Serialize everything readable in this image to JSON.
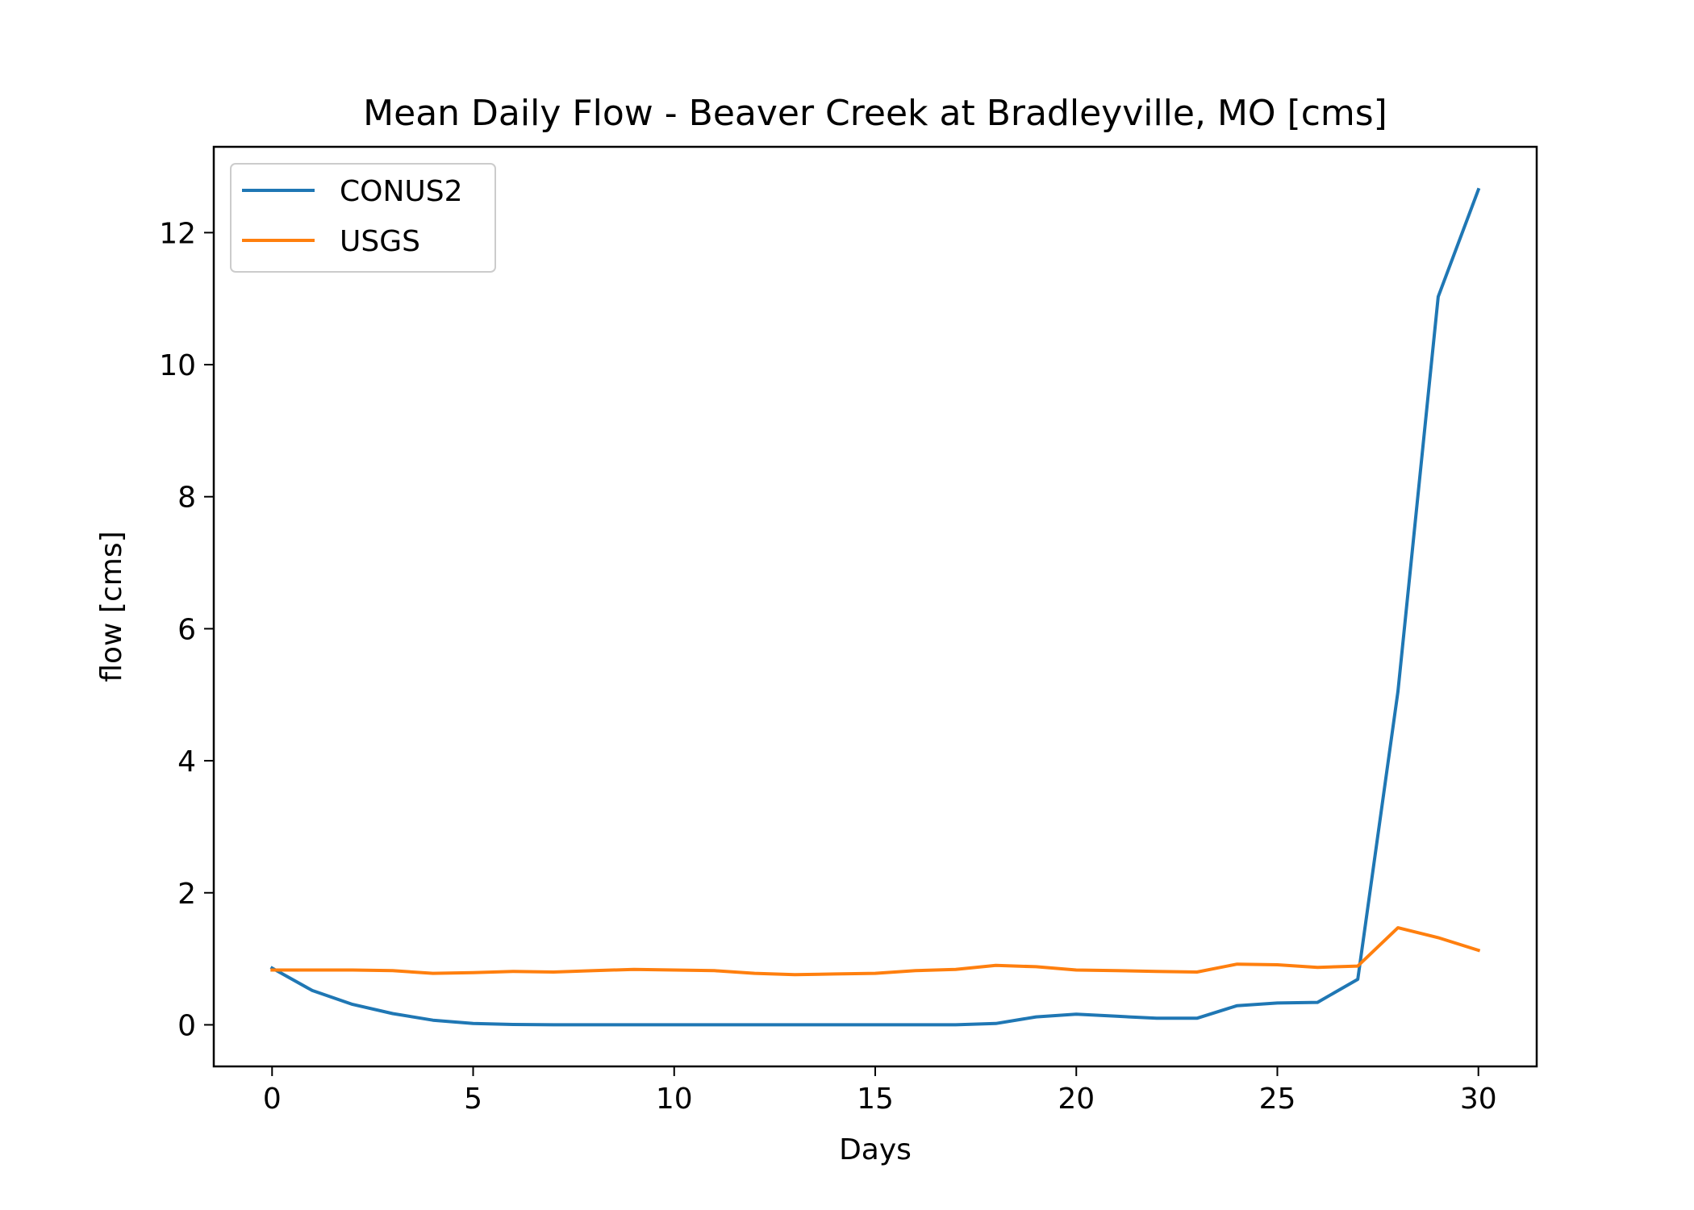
{
  "chart_data": {
    "type": "line",
    "title": "Mean Daily Flow - Beaver Creek at Bradleyville, MO [cms]",
    "xlabel": "Days",
    "ylabel": "flow [cms]",
    "xlim": [
      -1.45,
      31.45
    ],
    "ylim": [
      -0.63,
      13.3
    ],
    "xticks": [
      0,
      5,
      10,
      15,
      20,
      25,
      30
    ],
    "yticks": [
      0,
      2,
      4,
      6,
      8,
      10,
      12
    ],
    "grid": false,
    "legend_position": "upper-left",
    "x": [
      0,
      1,
      2,
      3,
      4,
      5,
      6,
      7,
      8,
      9,
      10,
      11,
      12,
      13,
      14,
      15,
      16,
      17,
      18,
      19,
      20,
      21,
      22,
      23,
      24,
      25,
      26,
      27,
      28,
      29,
      30
    ],
    "series": [
      {
        "name": "CONUS2",
        "color": "#1f77b4",
        "values": [
          0.86,
          0.52,
          0.31,
          0.17,
          0.07,
          0.02,
          0.005,
          0,
          0,
          0,
          0,
          0,
          0,
          0,
          0,
          0,
          0,
          0,
          0.02,
          0.12,
          0.16,
          0.13,
          0.1,
          0.1,
          0.29,
          0.33,
          0.34,
          0.69,
          5.05,
          11.03,
          12.65
        ]
      },
      {
        "name": "USGS",
        "color": "#ff7f0e",
        "values": [
          0.83,
          0.83,
          0.83,
          0.82,
          0.78,
          0.79,
          0.81,
          0.8,
          0.82,
          0.84,
          0.83,
          0.82,
          0.78,
          0.76,
          0.77,
          0.78,
          0.82,
          0.84,
          0.9,
          0.88,
          0.83,
          0.82,
          0.81,
          0.8,
          0.92,
          0.91,
          0.87,
          0.89,
          1.47,
          1.32,
          1.13
        ]
      }
    ]
  }
}
